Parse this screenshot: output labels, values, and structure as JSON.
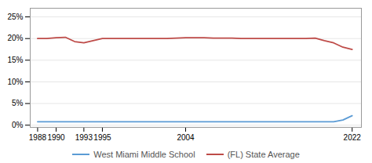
{
  "chart_data": {
    "type": "line",
    "x": [
      1988,
      1989,
      1990,
      1991,
      1992,
      1993,
      1994,
      1995,
      1996,
      1997,
      1998,
      1999,
      2000,
      2001,
      2002,
      2003,
      2004,
      2005,
      2006,
      2007,
      2008,
      2009,
      2010,
      2011,
      2012,
      2013,
      2014,
      2015,
      2016,
      2017,
      2018,
      2019,
      2020,
      2021,
      2022
    ],
    "series": [
      {
        "name": "West Miami Middle School",
        "color": "#5b9bd5",
        "values": [
          0.8,
          0.8,
          0.8,
          0.8,
          0.8,
          0.8,
          0.8,
          0.8,
          0.8,
          0.8,
          0.8,
          0.8,
          0.8,
          0.8,
          0.8,
          0.8,
          0.8,
          0.8,
          0.8,
          0.8,
          0.8,
          0.8,
          0.8,
          0.8,
          0.8,
          0.8,
          0.8,
          0.8,
          0.8,
          0.8,
          0.8,
          0.8,
          0.8,
          1.2,
          2.2
        ]
      },
      {
        "name": "(FL) State Average",
        "color": "#be4b48",
        "values": [
          20.0,
          20.0,
          20.2,
          20.3,
          19.3,
          19.0,
          19.5,
          20.0,
          20.0,
          20.0,
          20.0,
          20.0,
          20.0,
          20.0,
          20.0,
          20.1,
          20.2,
          20.2,
          20.2,
          20.1,
          20.1,
          20.1,
          20.0,
          20.0,
          20.0,
          20.0,
          20.0,
          20.0,
          20.0,
          20.0,
          20.1,
          19.5,
          19.0,
          18.0,
          17.5
        ]
      }
    ],
    "xlim": [
      1987.2,
      2023
    ],
    "xticks": [
      1988,
      1990,
      1993,
      1995,
      2004,
      2022
    ],
    "ylim": [
      -0.5,
      27
    ],
    "yticks": [
      {
        "value": 0,
        "label": "0%"
      },
      {
        "value": 5,
        "label": "5%"
      },
      {
        "value": 10,
        "label": "10%"
      },
      {
        "value": 15,
        "label": "15%"
      },
      {
        "value": 20,
        "label": "20%"
      },
      {
        "value": 25,
        "label": "25%"
      }
    ],
    "grid": true,
    "legend": "bottom"
  }
}
